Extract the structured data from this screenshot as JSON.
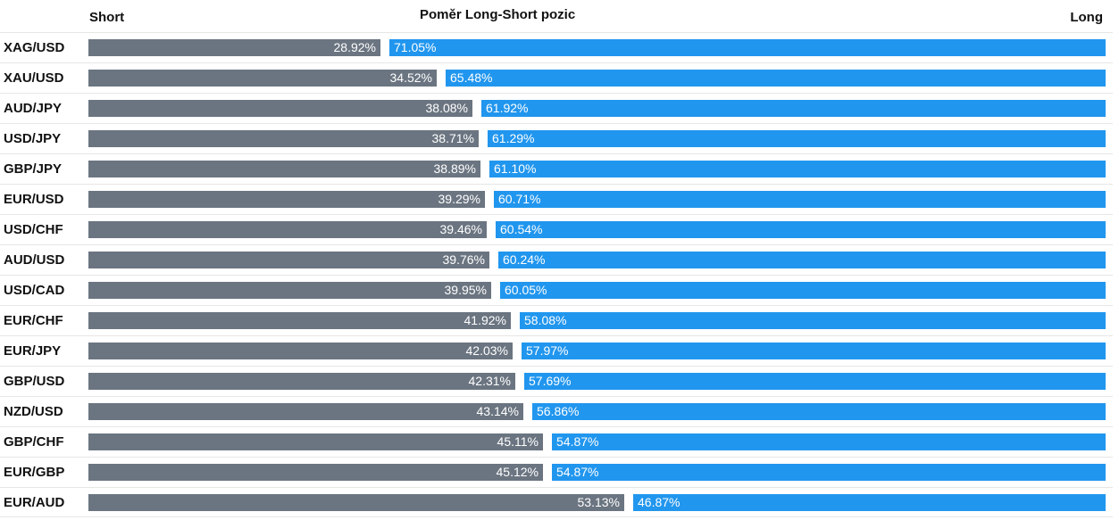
{
  "colors": {
    "short": "#6b7581",
    "long": "#2196ee"
  },
  "chart_data": {
    "type": "bar",
    "title": "Poměr Long-Short pozic",
    "short_label": "Short",
    "long_label": "Long",
    "categories": [
      "XAG/USD",
      "XAU/USD",
      "AUD/JPY",
      "USD/JPY",
      "GBP/JPY",
      "EUR/USD",
      "USD/CHF",
      "AUD/USD",
      "USD/CAD",
      "EUR/CHF",
      "EUR/JPY",
      "GBP/USD",
      "NZD/USD",
      "GBP/CHF",
      "EUR/GBP",
      "EUR/AUD"
    ],
    "series": [
      {
        "name": "Short",
        "values": [
          28.92,
          34.52,
          38.08,
          38.71,
          38.89,
          39.29,
          39.46,
          39.76,
          39.95,
          41.92,
          42.03,
          42.31,
          43.14,
          45.11,
          45.12,
          53.13
        ],
        "labels": [
          "28.92%",
          "34.52%",
          "38.08%",
          "38.71%",
          "38.89%",
          "39.29%",
          "39.46%",
          "39.76%",
          "39.95%",
          "41.92%",
          "42.03%",
          "42.31%",
          "43.14%",
          "45.11%",
          "45.12%",
          "53.13%"
        ]
      },
      {
        "name": "Long",
        "values": [
          71.05,
          65.48,
          61.92,
          61.29,
          61.1,
          60.71,
          60.54,
          60.24,
          60.05,
          58.08,
          57.97,
          57.69,
          56.86,
          54.87,
          54.87,
          46.87
        ],
        "labels": [
          "71.05%",
          "65.48%",
          "61.92%",
          "61.29%",
          "61.10%",
          "60.71%",
          "60.54%",
          "60.24%",
          "60.05%",
          "58.08%",
          "57.97%",
          "57.69%",
          "56.86%",
          "54.87%",
          "54.87%",
          "46.87%"
        ]
      }
    ],
    "xlim": [
      0,
      100
    ],
    "orientation": "horizontal",
    "stacked": true,
    "grid": false,
    "legend": "none"
  }
}
